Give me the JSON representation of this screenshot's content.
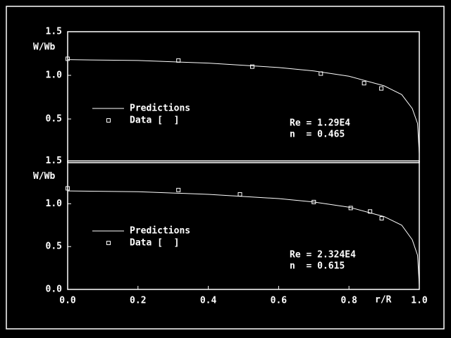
{
  "chart_data": [
    {
      "type": "line",
      "ylabel": "W/Wb",
      "xlim": [
        0,
        1
      ],
      "ylim": [
        0,
        1.5
      ],
      "yticks": [
        0.5,
        {
          "value": 1,
          "label": "1.0"
        },
        1.5
      ],
      "series": [
        {
          "name": "Predictions",
          "style": "line",
          "color": "#ffffff",
          "x": [
            0,
            0.2,
            0.4,
            0.6,
            0.7,
            0.8,
            0.9,
            0.95,
            0.98,
            0.995,
            1.0
          ],
          "values": [
            1.18,
            1.17,
            1.14,
            1.09,
            1.05,
            0.99,
            0.88,
            0.78,
            0.62,
            0.45,
            0.1
          ]
        },
        {
          "name": "Data [  ]",
          "style": "marker",
          "color": "#ffffff",
          "x": [
            0,
            0.315,
            0.525,
            0.72,
            0.843,
            0.892
          ],
          "values": [
            1.19,
            1.17,
            1.1,
            1.02,
            0.91,
            0.85
          ]
        }
      ],
      "annotations": [
        "Re = 1.29E4",
        "n  = 0.465"
      ]
    },
    {
      "type": "line",
      "ylabel": "W/Wb",
      "xlabel": "r/R",
      "xlim": [
        0,
        1
      ],
      "ylim": [
        0,
        1.5
      ],
      "xticks": [
        {
          "value": 0,
          "label": "0.0"
        },
        0.2,
        0.4,
        0.6,
        0.8,
        {
          "value": 1,
          "label": "1.0"
        }
      ],
      "yticks": [
        {
          "value": 0,
          "label": "0.0"
        },
        0.5,
        {
          "value": 1,
          "label": "1.0"
        },
        1.5
      ],
      "series": [
        {
          "name": "Predictions",
          "style": "line",
          "color": "#ffffff",
          "x": [
            0,
            0.2,
            0.4,
            0.6,
            0.7,
            0.8,
            0.9,
            0.95,
            0.98,
            0.995,
            1.0
          ],
          "values": [
            1.15,
            1.14,
            1.11,
            1.06,
            1.02,
            0.96,
            0.85,
            0.75,
            0.58,
            0.4,
            0.05
          ]
        },
        {
          "name": "Data [  ]",
          "style": "marker",
          "color": "#ffffff",
          "x": [
            0,
            0.315,
            0.49,
            0.7,
            0.805,
            0.86,
            0.893
          ],
          "values": [
            1.18,
            1.16,
            1.11,
            1.02,
            0.95,
            0.91,
            0.83
          ]
        }
      ],
      "annotations": [
        "Re = 2.324E4",
        "n  = 0.615"
      ]
    }
  ]
}
